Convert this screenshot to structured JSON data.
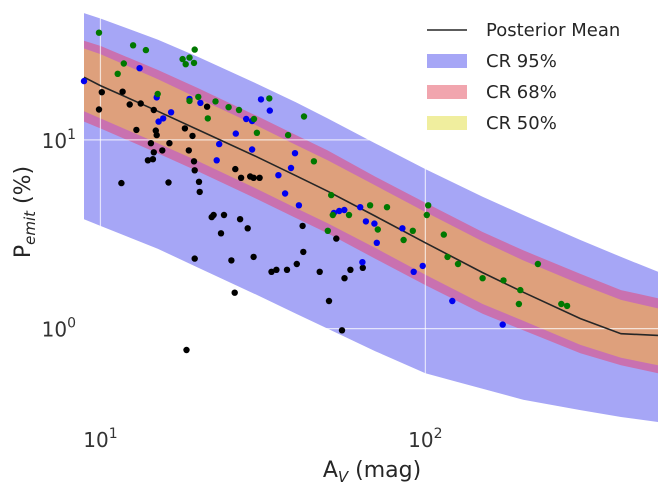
{
  "chart_data": {
    "type": "scatter",
    "xscale": "log",
    "yscale": "log",
    "xlim": [
      8.9,
      520
    ],
    "ylim": [
      0.32,
      50
    ],
    "grid": true,
    "legend_position": "top-right",
    "xlabel_main": "A",
    "xlabel_sub": "V",
    "xlabel_rest": " (mag)",
    "ylabel_main": "P",
    "ylabel_sub": "emit",
    "ylabel_rest": " (%)",
    "xticks": [
      {
        "value": 10,
        "base": "10",
        "exp": "1"
      },
      {
        "value": 100,
        "base": "10",
        "exp": "2"
      }
    ],
    "yticks": [
      {
        "value": 1,
        "base": "10",
        "exp": "0"
      },
      {
        "value": 10,
        "base": "10",
        "exp": "1"
      }
    ],
    "legend": [
      {
        "label": "Posterior Mean",
        "kind": "line",
        "color": "#262626"
      },
      {
        "label": "CR 95%",
        "kind": "patch",
        "color": "#a6a6f6"
      },
      {
        "label": "CR 68%",
        "kind": "patch",
        "color": "#f1a5ae"
      },
      {
        "label": "CR 50%",
        "kind": "patch",
        "color": "#f0ee9e"
      }
    ],
    "curve": {
      "x": [
        8.9,
        10,
        15,
        20,
        30,
        40,
        50,
        70,
        100,
        150,
        200,
        300,
        400,
        520
      ],
      "mean": [
        21.5,
        19.4,
        14.2,
        11.3,
        8.2,
        6.45,
        5.35,
        3.95,
        2.85,
        1.98,
        1.56,
        1.13,
        0.94,
        0.92
      ],
      "cr95_upper": [
        47,
        44,
        34,
        27.5,
        20,
        15.8,
        13,
        9.6,
        7,
        5,
        4,
        2.95,
        2.4,
        2.0
      ],
      "cr95_lower": [
        3.8,
        3.5,
        2.65,
        2.1,
        1.52,
        1.2,
        1.0,
        0.76,
        0.58,
        0.48,
        0.42,
        0.37,
        0.34,
        0.32
      ],
      "cr68_upper": [
        33.5,
        31.5,
        23.5,
        18.8,
        13.5,
        10.6,
        8.8,
        6.4,
        4.65,
        3.25,
        2.6,
        1.95,
        1.6,
        1.45
      ],
      "cr68_lower": [
        12.5,
        11.5,
        8.5,
        6.8,
        4.9,
        3.85,
        3.2,
        2.35,
        1.7,
        1.2,
        0.98,
        0.74,
        0.64,
        0.58
      ],
      "cr50_upper": [
        30.5,
        28.5,
        21,
        16.6,
        12,
        9.4,
        7.8,
        5.75,
        4.15,
        2.9,
        2.3,
        1.72,
        1.42,
        1.28
      ],
      "cr50_lower": [
        14.2,
        13,
        9.6,
        7.7,
        5.55,
        4.35,
        3.62,
        2.68,
        1.93,
        1.35,
        1.1,
        0.82,
        0.7,
        0.64
      ]
    },
    "band_colors": {
      "cr95": "#a6a6f6",
      "cr68": "#c971b0",
      "cr50": "#dea07c"
    },
    "series": [
      {
        "color": "#000000",
        "points": [
          [
            10.1,
            17.9
          ],
          [
            9.9,
            14.5
          ],
          [
            11.7,
            18.0
          ],
          [
            12.3,
            15.4
          ],
          [
            13.3,
            15.6
          ],
          [
            14.6,
            14.4
          ],
          [
            12.9,
            11.3
          ],
          [
            14.8,
            11.2
          ],
          [
            14.9,
            10.6
          ],
          [
            14.3,
            9.6
          ],
          [
            14.6,
            8.6
          ],
          [
            15.5,
            8.8
          ],
          [
            16.3,
            9.6
          ],
          [
            14.5,
            7.9
          ],
          [
            14.0,
            7.8
          ],
          [
            16.2,
            5.95
          ],
          [
            18.2,
            11.5
          ],
          [
            19.2,
            10.5
          ],
          [
            18.7,
            8.8
          ],
          [
            19.4,
            7.7
          ],
          [
            19.5,
            6.9
          ],
          [
            20.1,
            6.0
          ],
          [
            20.2,
            5.3
          ],
          [
            21.3,
            15.0
          ],
          [
            26.0,
            7.0
          ],
          [
            27.1,
            6.3
          ],
          [
            28.9,
            6.4
          ],
          [
            29.6,
            6.3
          ],
          [
            30.9,
            6.3
          ],
          [
            22.0,
            3.9
          ],
          [
            22.3,
            4.0
          ],
          [
            24.0,
            4.0
          ],
          [
            26.9,
            3.8
          ],
          [
            23.5,
            3.2
          ],
          [
            28.4,
            3.4
          ],
          [
            11.6,
            5.9
          ],
          [
            19.5,
            2.35
          ],
          [
            25.3,
            2.3
          ],
          [
            29.6,
            2.4
          ],
          [
            33.6,
            2.0
          ],
          [
            34.8,
            2.05
          ],
          [
            37.5,
            2.05
          ],
          [
            40.2,
            2.2
          ],
          [
            42.1,
            2.55
          ],
          [
            47.3,
            2.0
          ],
          [
            50.5,
            1.4
          ],
          [
            56.4,
            1.85
          ],
          [
            58.8,
            2.05
          ],
          [
            64.2,
            2.1
          ],
          [
            25.9,
            1.55
          ],
          [
            55.4,
            0.98
          ],
          [
            18.4,
            0.77
          ],
          [
            41.9,
            3.5
          ],
          [
            53.2,
            3.0
          ]
        ]
      },
      {
        "color": "#0000f0",
        "points": [
          [
            8.9,
            20.5
          ],
          [
            13.2,
            24.0
          ],
          [
            14.9,
            16.8
          ],
          [
            15.1,
            12.5
          ],
          [
            15.6,
            13.0
          ],
          [
            16.5,
            14.0
          ],
          [
            18.8,
            16.5
          ],
          [
            20.3,
            15.7
          ],
          [
            26.1,
            10.8
          ],
          [
            28.1,
            12.9
          ],
          [
            29.3,
            12.6
          ],
          [
            31.2,
            16.4
          ],
          [
            33.2,
            14.3
          ],
          [
            35.3,
            6.5
          ],
          [
            38.6,
            7.1
          ],
          [
            37.0,
            5.2
          ],
          [
            40.8,
            4.5
          ],
          [
            39.7,
            8.5
          ],
          [
            52.3,
            4.1
          ],
          [
            54.3,
            4.2
          ],
          [
            56.3,
            4.25
          ],
          [
            63.0,
            4.4
          ],
          [
            65.6,
            3.7
          ],
          [
            69.7,
            3.6
          ],
          [
            70.9,
            2.85
          ],
          [
            64.0,
            2.25
          ],
          [
            85.0,
            3.4
          ],
          [
            92.1,
            2.0
          ],
          [
            98.1,
            2.15
          ],
          [
            121.0,
            1.4
          ],
          [
            173.0,
            1.05
          ],
          [
            23.2,
            9.5
          ],
          [
            22.8,
            7.8
          ],
          [
            29.3,
            8.9
          ]
        ]
      },
      {
        "color": "#007800",
        "points": [
          [
            9.9,
            37.0
          ],
          [
            11.3,
            22.4
          ],
          [
            11.8,
            25.4
          ],
          [
            12.6,
            31.7
          ],
          [
            13.8,
            29.9
          ],
          [
            17.9,
            26.8
          ],
          [
            18.3,
            25.2
          ],
          [
            18.8,
            27.3
          ],
          [
            19.5,
            30.1
          ],
          [
            19.4,
            25.6
          ],
          [
            15.0,
            17.5
          ],
          [
            18.8,
            16.1
          ],
          [
            20.0,
            16.9
          ],
          [
            21.4,
            13.0
          ],
          [
            22.6,
            16.0
          ],
          [
            24.8,
            14.9
          ],
          [
            26.7,
            14.4
          ],
          [
            29.7,
            12.9
          ],
          [
            30.3,
            10.9
          ],
          [
            33.1,
            16.6
          ],
          [
            37.8,
            10.6
          ],
          [
            42.3,
            13.3
          ],
          [
            45.4,
            7.7
          ],
          [
            51.3,
            5.1
          ],
          [
            51.9,
            4.0
          ],
          [
            58.2,
            4.0
          ],
          [
            67.6,
            4.5
          ],
          [
            76.2,
            4.4
          ],
          [
            85.7,
            2.95
          ],
          [
            91.5,
            3.3
          ],
          [
            102.0,
            4.5
          ],
          [
            101.0,
            4.0
          ],
          [
            114.0,
            3.15
          ],
          [
            117.0,
            2.4
          ],
          [
            126.0,
            2.2
          ],
          [
            150.0,
            1.85
          ],
          [
            174.0,
            1.8
          ],
          [
            196.0,
            1.6
          ],
          [
            222.0,
            2.2
          ],
          [
            262.0,
            1.35
          ],
          [
            273.0,
            1.32
          ],
          [
            194.0,
            1.35
          ],
          [
            50.1,
            3.3
          ],
          [
            71.4,
            3.35
          ]
        ]
      }
    ]
  }
}
